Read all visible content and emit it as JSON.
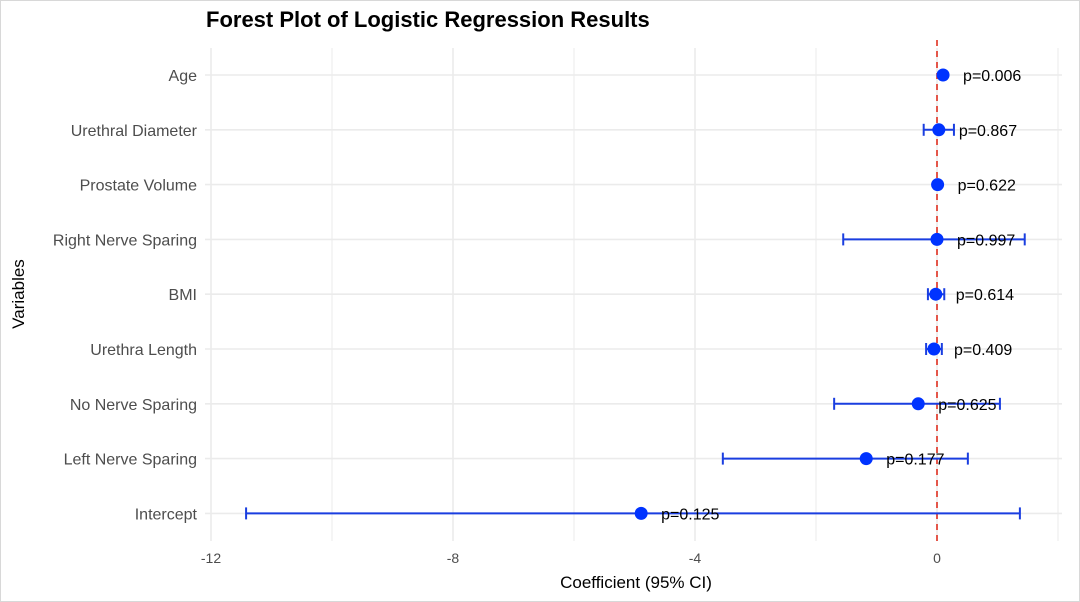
{
  "chart_data": {
    "type": "forest",
    "title": "Forest Plot of Logistic Regression Results",
    "xlabel": "Coefficient (95% CI)",
    "ylabel": "Variables",
    "xlim": [
      -12,
      2
    ],
    "xticks": [
      -12,
      -8,
      -4,
      0
    ],
    "xtick_labels": [
      "-12",
      "-8",
      "-4",
      "0"
    ],
    "reference_line": 0,
    "grid": true,
    "colors": {
      "point": "#0033ff",
      "ci": "#1a3ee0",
      "reference": "#e03020",
      "grid": "#ebebeb"
    },
    "rows": [
      {
        "variable": "Age",
        "estimate": 0.1,
        "lower": 0.08,
        "upper": 0.12,
        "p_label": "p=0.006"
      },
      {
        "variable": "Urethral Diameter",
        "estimate": 0.03,
        "lower": -0.22,
        "upper": 0.28,
        "p_label": "p=0.867"
      },
      {
        "variable": "Prostate Volume",
        "estimate": 0.01,
        "lower": -0.01,
        "upper": 0.03,
        "p_label": "p=0.622"
      },
      {
        "variable": "Right Nerve Sparing",
        "estimate": 0.0,
        "lower": -1.55,
        "upper": 1.45,
        "p_label": "p=0.997"
      },
      {
        "variable": "BMI",
        "estimate": -0.02,
        "lower": -0.15,
        "upper": 0.12,
        "p_label": "p=0.614"
      },
      {
        "variable": "Urethra Length",
        "estimate": -0.05,
        "lower": -0.18,
        "upper": 0.08,
        "p_label": "p=0.409"
      },
      {
        "variable": "No Nerve Sparing",
        "estimate": -0.31,
        "lower": -1.7,
        "upper": 1.04,
        "p_label": "p=0.625"
      },
      {
        "variable": "Left Nerve Sparing",
        "estimate": -1.17,
        "lower": -3.54,
        "upper": 0.51,
        "p_label": "p=0.177"
      },
      {
        "variable": "Intercept",
        "estimate": -4.89,
        "lower": -11.42,
        "upper": 1.37,
        "p_label": "p=0.125"
      }
    ]
  }
}
